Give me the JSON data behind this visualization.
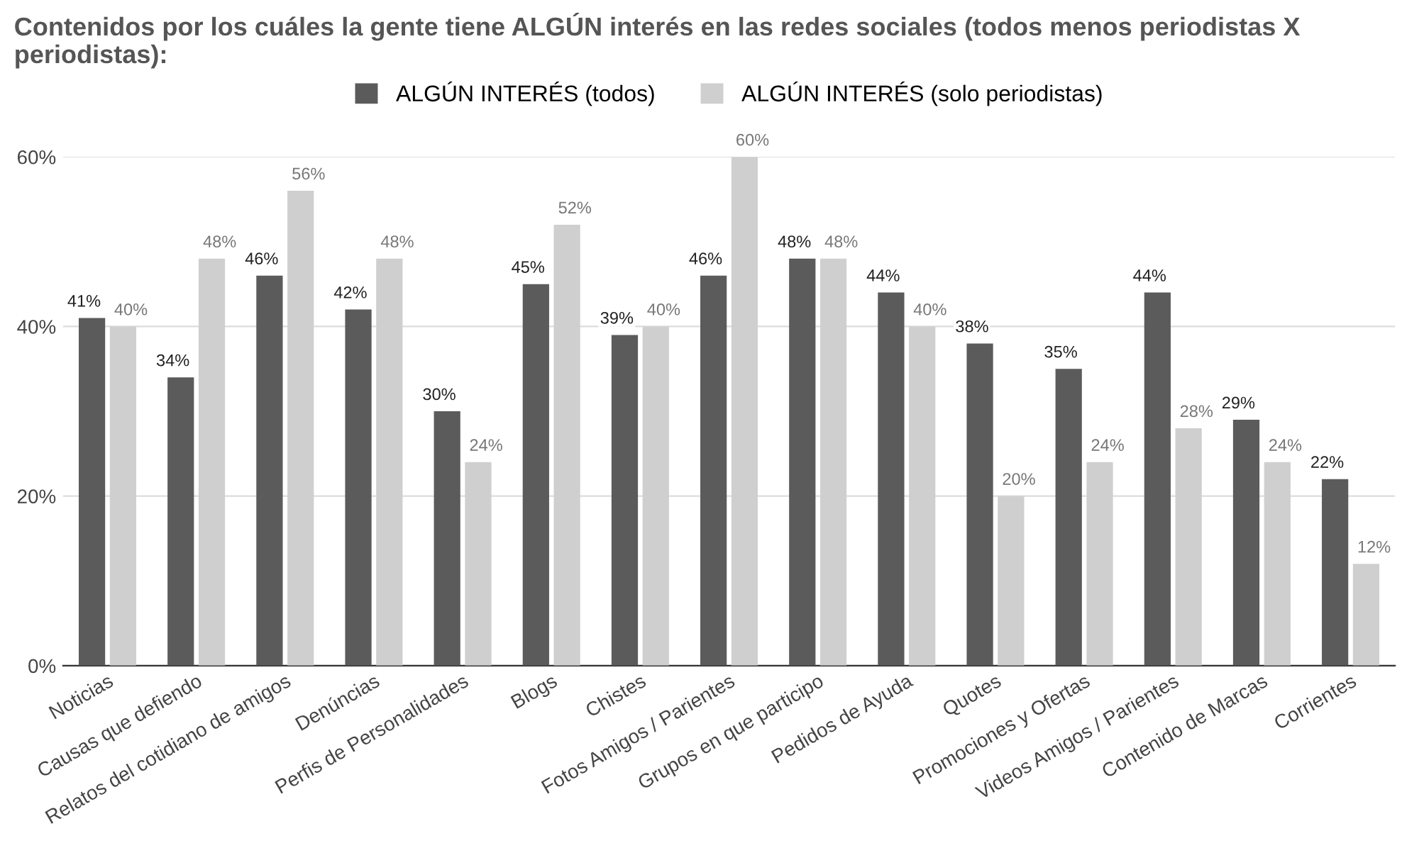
{
  "chart_data": {
    "type": "bar",
    "title": "Contenidos por los cuáles la gente tiene ALGÚN interés en las redes sociales (todos menos periodistas X periodistas):",
    "categories": [
      "Noticias",
      "Causas que defiendo",
      "Relatos del cotidiano de amigos",
      "Denúncias",
      "Perfis de Personalidades",
      "Blogs",
      "Chistes",
      "Fotos Amigos / Parientes",
      "Grupos en que participo",
      "Pedidos de Ayuda",
      "Quotes",
      "Promociones y Ofertas",
      "Videos Amigos / Parientes",
      "Contenido de Marcas",
      "Corrientes"
    ],
    "series": [
      {
        "name": "ALGÚN INTERÉS (todos)",
        "color": "#5b5b5b",
        "values": [
          41,
          34,
          46,
          42,
          30,
          45,
          39,
          46,
          48,
          44,
          38,
          35,
          44,
          29,
          22
        ],
        "value_labels": [
          "41%",
          "34%",
          "46%",
          "42%",
          "30%",
          "45%",
          "39%",
          "46%",
          "48%",
          "44%",
          "38%",
          "35%",
          "44%",
          "29%",
          "22%"
        ]
      },
      {
        "name": "ALGÚN INTERÉS (solo periodistas)",
        "color": "#cfcfcf",
        "values": [
          40,
          48,
          56,
          48,
          24,
          52,
          40,
          60,
          48,
          40,
          20,
          24,
          28,
          24,
          12
        ],
        "value_labels": [
          "40%",
          "48%",
          "56%",
          "48%",
          "24%",
          "52%",
          "40%",
          "60%",
          "48%",
          "40%",
          "20%",
          "24%",
          "28%",
          "24%",
          "12%"
        ]
      }
    ],
    "ylim": [
      0,
      60
    ],
    "yticks": [
      {
        "value": 0,
        "label": "0%"
      },
      {
        "value": 20,
        "label": "20%"
      },
      {
        "value": 40,
        "label": "40%"
      },
      {
        "value": 60,
        "label": "60%"
      }
    ],
    "grid": "y",
    "legend": "top"
  }
}
